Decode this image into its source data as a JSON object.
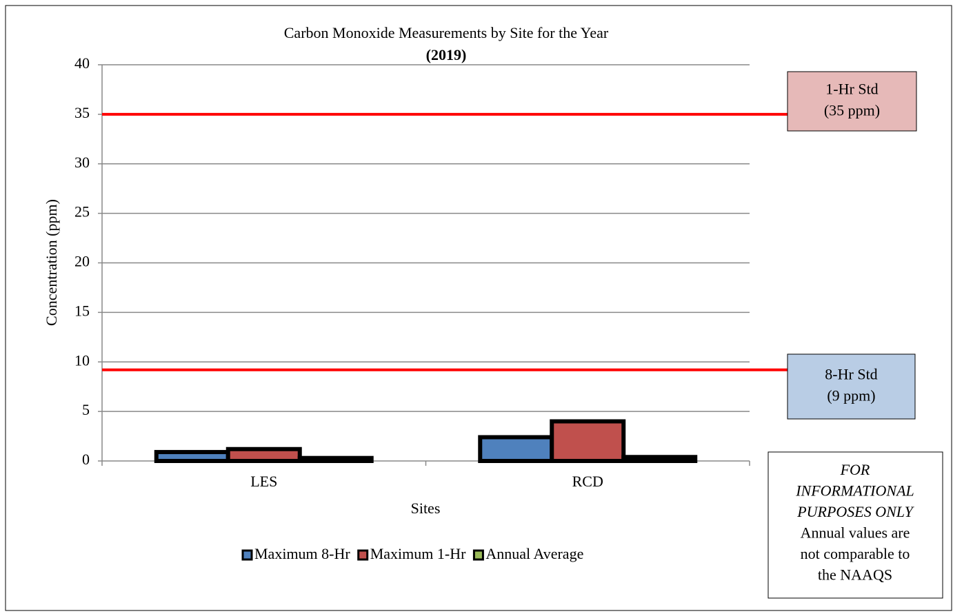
{
  "chart_data": {
    "type": "bar",
    "title": "Carbon Monoxide Measurements by Site for the Year",
    "subtitle": "(2019)",
    "x_label": "Sites",
    "y_label": "Concentration (ppm)",
    "categories": [
      "LES",
      "RCD"
    ],
    "series": [
      {
        "name": "Maximum 8-Hr",
        "color": "#4f81bd",
        "values": [
          0.9,
          2.4
        ]
      },
      {
        "name": "Maximum 1-Hr",
        "color": "#c0504d",
        "values": [
          1.2,
          4.0
        ]
      },
      {
        "name": "Annual Average",
        "color": "#9bbb59",
        "values": [
          0.3,
          0.4
        ]
      }
    ],
    "ylim": [
      0,
      40
    ],
    "yticks": [
      0,
      5,
      10,
      15,
      20,
      25,
      30,
      35,
      40
    ],
    "grid": true,
    "legend": "bottom",
    "reference_lines": [
      {
        "value": 35,
        "color": "#ff0000",
        "box_color": "#e6b9b8",
        "label_lines": [
          "1-Hr Std",
          "(35 ppm)"
        ]
      },
      {
        "value": 9.2,
        "color": "#ff0000",
        "box_color": "#b9cde5",
        "label_lines": [
          "8-Hr Std",
          "(9 ppm)"
        ]
      }
    ],
    "note": {
      "italic_lines": [
        "FOR",
        "INFORMATIONAL",
        "PURPOSES ONLY"
      ],
      "lines": [
        "Annual values are",
        "not comparable to",
        "the NAAQS"
      ]
    }
  }
}
